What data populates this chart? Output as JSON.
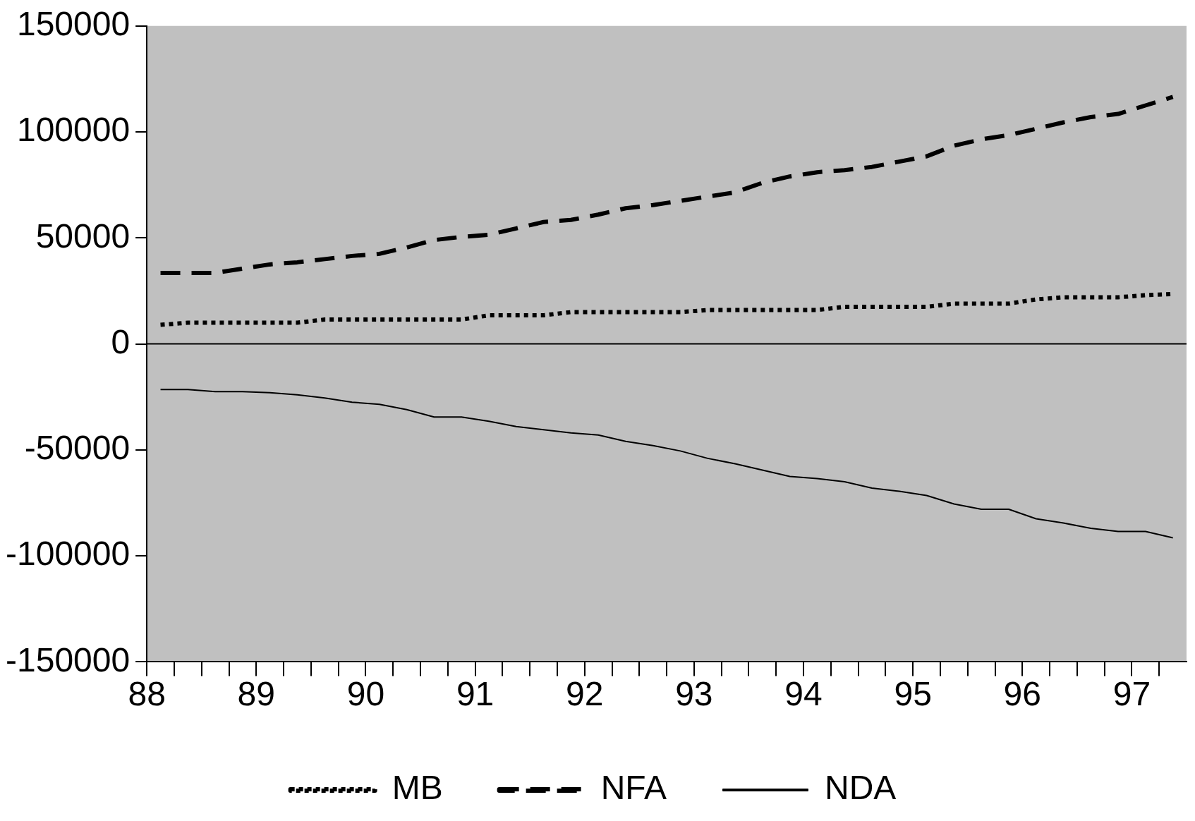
{
  "chart_data": {
    "type": "line",
    "x": [
      88.125,
      88.375,
      88.625,
      88.875,
      89.125,
      89.375,
      89.625,
      89.875,
      90.125,
      90.375,
      90.625,
      90.875,
      91.125,
      91.375,
      91.625,
      91.875,
      92.125,
      92.375,
      92.625,
      92.875,
      93.125,
      93.375,
      93.625,
      93.875,
      94.125,
      94.375,
      94.625,
      94.875,
      95.125,
      95.375,
      95.625,
      95.875,
      96.125,
      96.375,
      96.625,
      96.875,
      97.125,
      97.375
    ],
    "series": [
      {
        "name": "MB",
        "color": "#000000",
        "line_style": "dotted",
        "values": [
          9000,
          10000,
          10000,
          10000,
          10000,
          10000,
          11500,
          11500,
          11500,
          11500,
          11500,
          11500,
          13500,
          13500,
          13500,
          15000,
          15000,
          15000,
          15000,
          15000,
          16000,
          16000,
          16000,
          16000,
          16000,
          17500,
          17500,
          17500,
          17500,
          19000,
          19000,
          19000,
          21000,
          22000,
          22000,
          22000,
          23000,
          23500
        ]
      },
      {
        "name": "NFA",
        "color": "#000000",
        "line_style": "dashed",
        "values": [
          33500,
          33500,
          33500,
          35500,
          37500,
          38500,
          40000,
          41500,
          42500,
          45500,
          49000,
          50500,
          51500,
          54500,
          57500,
          58500,
          61000,
          64000,
          65500,
          67500,
          69500,
          71500,
          76000,
          79000,
          81000,
          82000,
          83500,
          86000,
          88500,
          93500,
          96500,
          98500,
          101500,
          104500,
          107000,
          108500,
          112500,
          116500
        ]
      },
      {
        "name": "NDA",
        "color": "#000000",
        "line_style": "solid",
        "values": [
          -21500,
          -21500,
          -22500,
          -22500,
          -23000,
          -24000,
          -25500,
          -27500,
          -28500,
          -31000,
          -34500,
          -34500,
          -36500,
          -39000,
          -40500,
          -42000,
          -43000,
          -46000,
          -48000,
          -50500,
          -54000,
          -56500,
          -59500,
          -62500,
          -63500,
          -65000,
          -68000,
          -69500,
          -71500,
          -75500,
          -78000,
          -78000,
          -82500,
          -84500,
          -87000,
          -88500,
          -88500,
          -91500
        ]
      }
    ],
    "xlim": [
      88,
      97.5
    ],
    "xticks": [
      88,
      {
        "value": 88.25,
        "label": null
      },
      {
        "value": 88.5,
        "label": null
      },
      {
        "value": 88.75,
        "label": null
      },
      89,
      {
        "value": 89.25,
        "label": null
      },
      {
        "value": 89.5,
        "label": null
      },
      {
        "value": 89.75,
        "label": null
      },
      90,
      {
        "value": 90.25,
        "label": null
      },
      {
        "value": 90.5,
        "label": null
      },
      {
        "value": 90.75,
        "label": null
      },
      91,
      {
        "value": 91.25,
        "label": null
      },
      {
        "value": 91.5,
        "label": null
      },
      {
        "value": 91.75,
        "label": null
      },
      92,
      {
        "value": 92.25,
        "label": null
      },
      {
        "value": 92.5,
        "label": null
      },
      {
        "value": 92.75,
        "label": null
      },
      93,
      {
        "value": 93.25,
        "label": null
      },
      {
        "value": 93.5,
        "label": null
      },
      {
        "value": 93.75,
        "label": null
      },
      94,
      {
        "value": 94.25,
        "label": null
      },
      {
        "value": 94.5,
        "label": null
      },
      {
        "value": 94.75,
        "label": null
      },
      95,
      {
        "value": 95.25,
        "label": null
      },
      {
        "value": 95.5,
        "label": null
      },
      {
        "value": 95.75,
        "label": null
      },
      96,
      {
        "value": 96.25,
        "label": null
      },
      {
        "value": 96.5,
        "label": null
      },
      {
        "value": 96.75,
        "label": null
      },
      97,
      {
        "value": 97.25,
        "label": null
      }
    ],
    "ylim": [
      -150000,
      150000
    ],
    "yticks": [
      -150000,
      -100000,
      -50000,
      0,
      50000,
      100000,
      150000
    ],
    "ref_lines": [
      {
        "axis": "y",
        "value": 0,
        "color": "#000000"
      }
    ],
    "grid": false,
    "legend": "bottom",
    "marker": "none"
  }
}
